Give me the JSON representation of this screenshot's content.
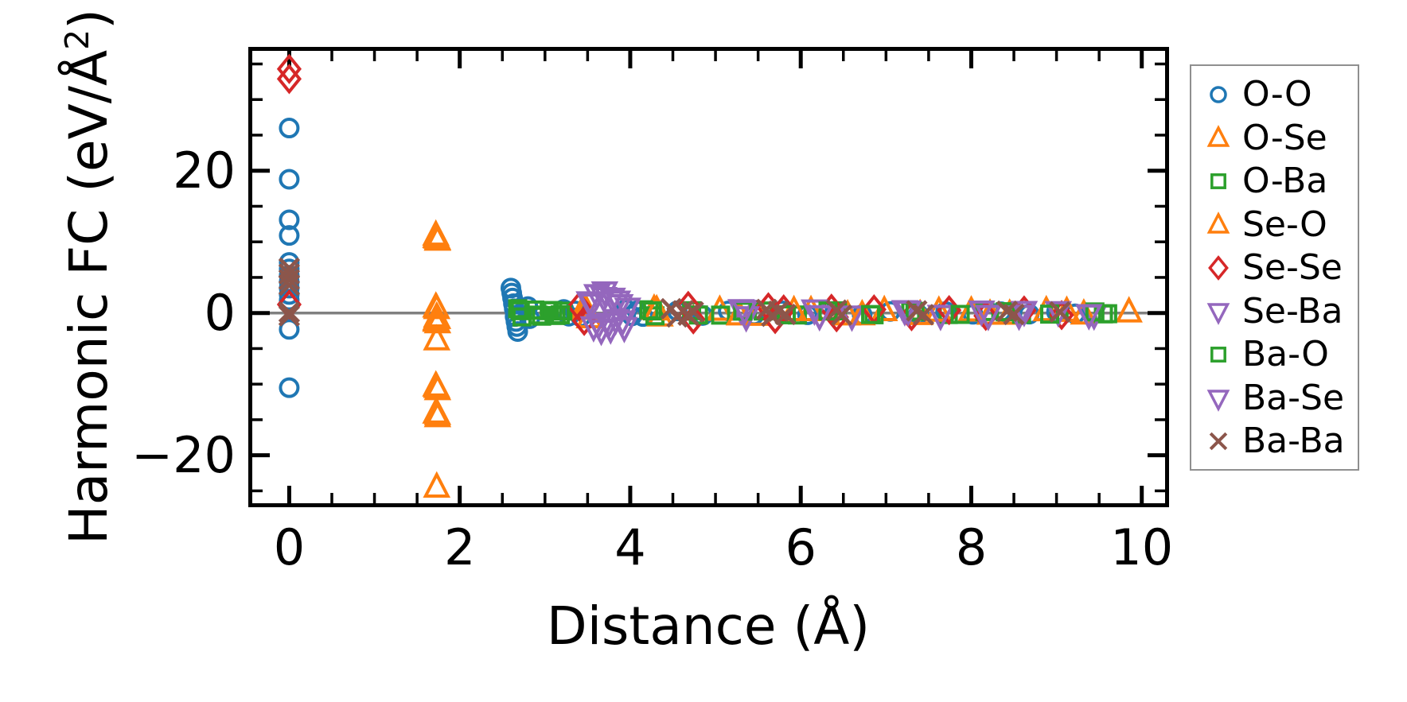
{
  "axes": {
    "x_label": "Distance (Å)",
    "y_label_prefix": "Harmonic FC (eV/Å",
    "y_label_sup": "2",
    "y_label_suffix": ")"
  },
  "chart_data": {
    "type": "scatter",
    "title": "",
    "xlabel": "Distance (Å)",
    "ylabel": "Harmonic FC (eV/Å²)",
    "xlim": [
      -0.48,
      10.32
    ],
    "ylim": [
      -27.3,
      37.4
    ],
    "x_major_ticks": [
      0,
      2,
      4,
      6,
      8,
      10
    ],
    "x_tick_labels": [
      "0",
      "2",
      "4",
      "6",
      "8",
      "10"
    ],
    "x_minor_step": 0.5,
    "y_major_ticks": [
      20,
      0,
      -20
    ],
    "y_tick_labels": [
      "20",
      "0",
      "−20"
    ],
    "y_minor_step": 5,
    "grid": false,
    "zero_line": {
      "y": 0,
      "color": "#808080"
    },
    "legend_position": "outside-right",
    "colors": {
      "blue": "#1f77b4",
      "orange": "#ff7f0e",
      "green": "#2ca02c",
      "red": "#d62728",
      "purple": "#9467bd",
      "brown": "#8c564b"
    },
    "series": [
      {
        "name": "O-O",
        "marker": "circle",
        "color": "#1f77b4",
        "points": [
          [
            0,
            26.0
          ],
          [
            0,
            18.8
          ],
          [
            0,
            13.1
          ],
          [
            0,
            10.9
          ],
          [
            0,
            7.1
          ],
          [
            0,
            6.2
          ],
          [
            0,
            5.3
          ],
          [
            0,
            4.4
          ],
          [
            0,
            3.5
          ],
          [
            0,
            2.6
          ],
          [
            0,
            1.8
          ],
          [
            0,
            -2.3
          ],
          [
            0,
            -10.5
          ],
          [
            2.6,
            3.5
          ],
          [
            2.61,
            2.8
          ],
          [
            2.62,
            2.1
          ],
          [
            2.63,
            1.3
          ],
          [
            2.64,
            0.6
          ],
          [
            2.65,
            -0.5
          ],
          [
            2.66,
            -1.2
          ],
          [
            2.67,
            -1.9
          ],
          [
            2.68,
            -2.6
          ],
          [
            2.8,
            0.9
          ],
          [
            2.82,
            -0.8
          ],
          [
            3.22,
            0.5
          ],
          [
            3.28,
            -0.45
          ],
          [
            3.35,
            0.3
          ],
          [
            3.42,
            -0.55
          ],
          [
            3.95,
            0.5
          ],
          [
            4.02,
            -0.4
          ],
          [
            4.08,
            0.3
          ],
          [
            4.15,
            -0.5
          ],
          [
            4.55,
            0.3
          ],
          [
            4.85,
            -0.35
          ],
          [
            5.15,
            0.28
          ],
          [
            5.45,
            -0.3
          ],
          [
            5.78,
            0.3
          ],
          [
            6.08,
            -0.25
          ],
          [
            6.4,
            0.25
          ],
          [
            6.72,
            -0.25
          ],
          [
            7.05,
            0.22
          ],
          [
            7.38,
            -0.2
          ],
          [
            7.7,
            0.2
          ],
          [
            8.02,
            -0.18
          ],
          [
            8.35,
            0.18
          ],
          [
            8.68,
            -0.16
          ],
          [
            9.0,
            0.15
          ],
          [
            9.22,
            -0.12
          ]
        ]
      },
      {
        "name": "O-Se",
        "marker": "triangle-up",
        "color": "#ff7f0e",
        "points": [
          [
            1.72,
            10.9
          ],
          [
            1.73,
            10.5
          ],
          [
            1.74,
            10.2
          ],
          [
            1.72,
            0.8
          ],
          [
            1.73,
            -0.6
          ],
          [
            1.72,
            -1.0
          ],
          [
            1.74,
            -1.4
          ],
          [
            1.73,
            -3.8
          ],
          [
            1.72,
            -10.3
          ],
          [
            1.74,
            -10.8
          ],
          [
            1.72,
            -14.1
          ],
          [
            1.74,
            -14.6
          ],
          [
            1.73,
            -24.5
          ],
          [
            3.45,
            0.6
          ],
          [
            3.52,
            -0.7
          ],
          [
            4.28,
            0.5
          ],
          [
            4.35,
            -0.45
          ],
          [
            5.05,
            0.35
          ],
          [
            5.5,
            -0.35
          ],
          [
            6.12,
            0.3
          ],
          [
            6.55,
            -0.3
          ],
          [
            6.98,
            0.3
          ],
          [
            7.4,
            -0.25
          ],
          [
            8.0,
            0.25
          ],
          [
            8.45,
            -0.2
          ],
          [
            8.88,
            0.28
          ],
          [
            9.32,
            -0.18
          ],
          [
            9.85,
            0.12
          ]
        ]
      },
      {
        "name": "O-Ba",
        "marker": "square",
        "color": "#2ca02c",
        "points": [
          [
            2.68,
            0.6
          ],
          [
            2.73,
            -0.55
          ],
          [
            2.88,
            0.42
          ],
          [
            2.96,
            -0.45
          ],
          [
            3.05,
            0.32
          ],
          [
            3.13,
            -0.35
          ],
          [
            3.21,
            0.26
          ],
          [
            4.22,
            0.45
          ],
          [
            4.29,
            -0.4
          ],
          [
            4.72,
            0.32
          ],
          [
            5.06,
            -0.3
          ],
          [
            5.56,
            0.28
          ],
          [
            5.96,
            -0.28
          ],
          [
            6.43,
            0.3
          ],
          [
            6.86,
            -0.25
          ],
          [
            7.29,
            0.25
          ],
          [
            7.73,
            -0.22
          ],
          [
            8.16,
            0.2
          ],
          [
            8.59,
            -0.18
          ],
          [
            9.03,
            0.18
          ],
          [
            9.55,
            -0.12
          ]
        ]
      },
      {
        "name": "Se-O",
        "marker": "triangle-up",
        "color": "#ff7f0e",
        "points": [
          [
            1.72,
            10.6
          ],
          [
            1.74,
            10.3
          ],
          [
            1.73,
            0.6
          ],
          [
            1.74,
            -0.8
          ],
          [
            1.72,
            -1.2
          ],
          [
            1.73,
            -10.5
          ],
          [
            1.74,
            -14.3
          ],
          [
            3.48,
            0.5
          ],
          [
            4.31,
            0.4
          ],
          [
            5.28,
            -0.3
          ],
          [
            5.92,
            0.3
          ],
          [
            6.72,
            -0.28
          ],
          [
            7.62,
            0.22
          ],
          [
            8.22,
            -0.2
          ],
          [
            9.12,
            0.2
          ]
        ]
      },
      {
        "name": "Se-Se",
        "marker": "diamond",
        "color": "#d62728",
        "points": [
          [
            0,
            34.3
          ],
          [
            0,
            32.9
          ],
          [
            0,
            1.2
          ],
          [
            3.4,
            0.9
          ],
          [
            3.46,
            -1.1
          ],
          [
            4.68,
            1.0
          ],
          [
            4.74,
            -0.9
          ],
          [
            5.62,
            0.8
          ],
          [
            5.7,
            -0.85
          ],
          [
            5.8,
            0.5
          ],
          [
            6.36,
            0.6
          ],
          [
            6.42,
            -0.6
          ],
          [
            6.86,
            0.5
          ],
          [
            7.3,
            -0.45
          ],
          [
            7.74,
            0.4
          ],
          [
            8.17,
            -0.4
          ],
          [
            8.62,
            0.35
          ],
          [
            9.06,
            -0.3
          ]
        ]
      },
      {
        "name": "Se-Ba",
        "marker": "triangle-down",
        "color": "#9467bd",
        "points": [
          [
            3.52,
            1.6
          ],
          [
            3.57,
            -1.9
          ],
          [
            3.61,
            2.6
          ],
          [
            3.66,
            -2.4
          ],
          [
            3.7,
            3.0
          ],
          [
            3.75,
            -1.4
          ],
          [
            3.79,
            2.1
          ],
          [
            3.83,
            -0.9
          ],
          [
            3.88,
            1.2
          ],
          [
            3.93,
            -2.0
          ],
          [
            3.97,
            0.7
          ],
          [
            5.3,
            0.5
          ],
          [
            5.36,
            -0.5
          ],
          [
            6.16,
            0.45
          ],
          [
            6.6,
            -0.4
          ],
          [
            7.22,
            0.35
          ],
          [
            7.64,
            -0.3
          ],
          [
            8.12,
            0.3
          ],
          [
            8.56,
            -0.28
          ],
          [
            9.02,
            0.22
          ],
          [
            9.44,
            -0.25
          ]
        ]
      },
      {
        "name": "Ba-O",
        "marker": "square",
        "color": "#2ca02c",
        "points": [
          [
            2.71,
            0.32
          ],
          [
            2.92,
            -0.3
          ],
          [
            3.09,
            0.35
          ],
          [
            3.18,
            -0.26
          ],
          [
            4.26,
            0.3
          ],
          [
            4.8,
            -0.28
          ],
          [
            5.32,
            0.26
          ],
          [
            5.83,
            -0.25
          ],
          [
            6.32,
            0.28
          ],
          [
            6.82,
            -0.22
          ],
          [
            7.34,
            0.22
          ],
          [
            7.87,
            -0.2
          ],
          [
            8.4,
            0.18
          ],
          [
            8.92,
            -0.16
          ],
          [
            9.45,
            0.15
          ],
          [
            9.6,
            -0.1
          ]
        ]
      },
      {
        "name": "Ba-Se",
        "marker": "triangle-down",
        "color": "#9467bd",
        "points": [
          [
            3.55,
            1.3
          ],
          [
            3.63,
            -1.6
          ],
          [
            3.69,
            2.2
          ],
          [
            3.77,
            -2.2
          ],
          [
            3.85,
            1.7
          ],
          [
            3.91,
            -1.1
          ],
          [
            5.34,
            0.4
          ],
          [
            6.22,
            -0.35
          ],
          [
            7.26,
            0.3
          ],
          [
            8.2,
            -0.3
          ],
          [
            8.62,
            0.25
          ],
          [
            9.38,
            -0.2
          ]
        ]
      },
      {
        "name": "Ba-Ba",
        "marker": "x",
        "color": "#8c564b",
        "points": [
          [
            0,
            6.3
          ],
          [
            0,
            5.5
          ],
          [
            0,
            4.7
          ],
          [
            0,
            3.9
          ],
          [
            0,
            0.1
          ],
          [
            0,
            -0.4
          ],
          [
            4.48,
            0.6
          ],
          [
            4.55,
            -0.55
          ],
          [
            4.62,
            0.3
          ],
          [
            4.68,
            -0.3
          ],
          [
            4.74,
            0.15
          ],
          [
            5.6,
            0.5
          ],
          [
            5.66,
            -0.45
          ],
          [
            5.74,
            0.25
          ],
          [
            5.82,
            -0.2
          ],
          [
            6.42,
            0.4
          ],
          [
            6.48,
            -0.3
          ],
          [
            7.36,
            0.3
          ],
          [
            7.44,
            -0.25
          ],
          [
            8.42,
            0.25
          ],
          [
            8.5,
            -0.2
          ],
          [
            9.04,
            0.15
          ]
        ]
      }
    ]
  },
  "legend": {
    "items": [
      "O-O",
      "O-Se",
      "O-Ba",
      "Se-O",
      "Se-Se",
      "Se-Ba",
      "Ba-O",
      "Ba-Se",
      "Ba-Ba"
    ]
  }
}
